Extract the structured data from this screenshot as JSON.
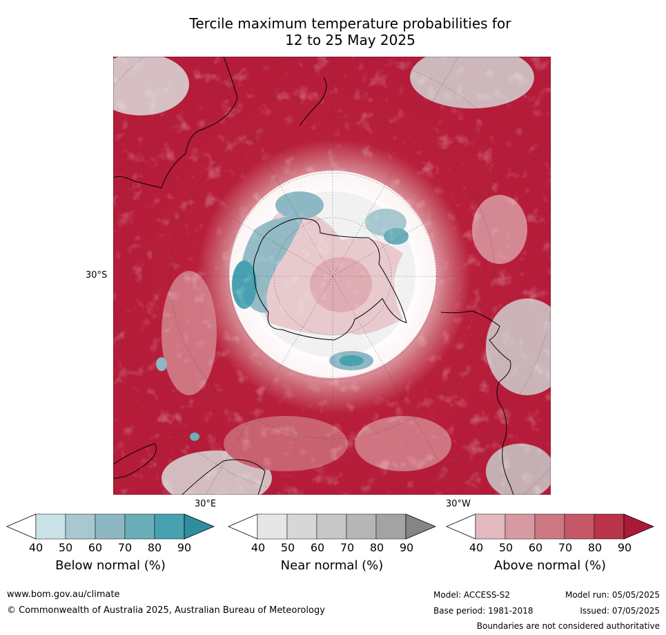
{
  "title_line1": "Tercile maximum temperature probabilities for",
  "title_line2": "12 to 25 May 2025",
  "map": {
    "lat_label": "30°S",
    "lon_label_e": "30°E",
    "lon_label_w": "30°W"
  },
  "colorbars": [
    {
      "label": "Below normal (%)",
      "ticks": [
        "40",
        "50",
        "60",
        "70",
        "80",
        "90"
      ],
      "colors": [
        "#ffffff",
        "#c9e2e8",
        "#a7c8cf",
        "#8db8c3",
        "#6aaeb9",
        "#47a1b0",
        "#2e8e9f"
      ]
    },
    {
      "label": "Near normal (%)",
      "ticks": [
        "40",
        "50",
        "60",
        "70",
        "80",
        "90"
      ],
      "colors": [
        "#ffffff",
        "#e6e6e6",
        "#d7d7d7",
        "#c7c7c7",
        "#b6b6b6",
        "#a3a3a3",
        "#858585"
      ]
    },
    {
      "label": "Above normal (%)",
      "ticks": [
        "40",
        "50",
        "60",
        "70",
        "80",
        "90"
      ],
      "colors": [
        "#ffffff",
        "#e4b9bf",
        "#d89aa2",
        "#cd7882",
        "#c45866",
        "#b9334a",
        "#aa1a36"
      ]
    }
  ],
  "footer": {
    "url": "www.bom.gov.au/climate",
    "copyright": "© Commonwealth of Australia 2025, Australian Bureau of Meteorology",
    "model": "Model: ACCESS-S2",
    "model_run": "Model run: 05/05/2025",
    "base_period": "Base period: 1981-2018",
    "issued": "Issued: 07/05/2025",
    "disclaimer": "Boundaries are not considered authoritative"
  }
}
